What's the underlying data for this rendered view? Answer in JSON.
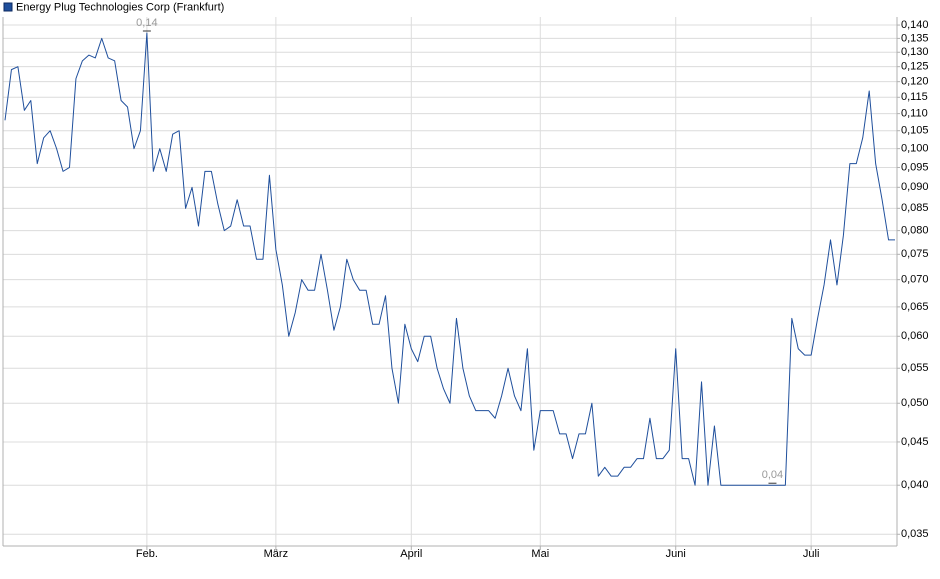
{
  "chart_data": {
    "type": "line",
    "log_y": true,
    "grid": true,
    "legend": "top-left",
    "categories": [
      null,
      null,
      null,
      null,
      null,
      null,
      null,
      null,
      null,
      null,
      null,
      null,
      null,
      null,
      null,
      null,
      null,
      null,
      null,
      null,
      null,
      null,
      "Feb.",
      null,
      null,
      null,
      null,
      null,
      null,
      null,
      null,
      null,
      null,
      null,
      null,
      null,
      null,
      null,
      null,
      null,
      null,
      null,
      "März",
      null,
      null,
      null,
      null,
      null,
      null,
      null,
      null,
      null,
      null,
      null,
      null,
      null,
      null,
      null,
      null,
      null,
      null,
      null,
      null,
      "April",
      null,
      null,
      null,
      null,
      null,
      null,
      null,
      null,
      null,
      null,
      null,
      null,
      null,
      null,
      null,
      null,
      null,
      null,
      null,
      "Mai",
      null,
      null,
      null,
      null,
      null,
      null,
      null,
      null,
      null,
      null,
      null,
      null,
      null,
      null,
      null,
      null,
      null,
      null,
      null,
      null,
      "Juni",
      null,
      null,
      null,
      null,
      null,
      null,
      null,
      null,
      null,
      null,
      null,
      null,
      null,
      null,
      null,
      null,
      null,
      null,
      null,
      null,
      "Juli",
      null,
      null,
      null,
      null,
      null,
      null,
      null,
      null,
      null,
      null,
      null,
      null,
      null
    ],
    "series": [
      {
        "name": "Energy Plug Technologies Corp (Frankfurt)",
        "color": "#1f4f9c",
        "values": [
          0.108,
          0.124,
          0.125,
          0.111,
          0.114,
          0.096,
          0.103,
          0.105,
          0.1,
          0.094,
          0.095,
          0.121,
          0.127,
          0.129,
          0.128,
          0.135,
          0.128,
          0.127,
          0.114,
          0.112,
          0.1,
          0.105,
          0.137,
          0.094,
          0.1,
          0.094,
          0.104,
          0.105,
          0.085,
          0.09,
          0.081,
          0.094,
          0.094,
          0.086,
          0.08,
          0.081,
          0.087,
          0.081,
          0.081,
          0.074,
          0.074,
          0.093,
          0.076,
          0.069,
          0.06,
          0.064,
          0.07,
          0.068,
          0.068,
          0.075,
          0.068,
          0.061,
          0.065,
          0.074,
          0.07,
          0.068,
          0.068,
          0.062,
          0.062,
          0.067,
          0.055,
          0.05,
          0.062,
          0.058,
          0.056,
          0.06,
          0.06,
          0.055,
          0.052,
          0.05,
          0.063,
          0.055,
          0.051,
          0.049,
          0.049,
          0.049,
          0.048,
          0.051,
          0.055,
          0.051,
          0.049,
          0.058,
          0.044,
          0.049,
          0.049,
          0.049,
          0.046,
          0.046,
          0.043,
          0.046,
          0.046,
          0.05,
          0.041,
          0.042,
          0.041,
          0.041,
          0.042,
          0.042,
          0.043,
          0.043,
          0.048,
          0.043,
          0.043,
          0.044,
          0.058,
          0.043,
          0.043,
          0.04,
          0.053,
          0.04,
          0.047,
          0.04,
          0.04,
          0.04,
          0.04,
          0.04,
          0.04,
          0.04,
          0.04,
          0.04,
          0.04,
          0.04,
          0.063,
          0.058,
          0.057,
          0.057,
          0.063,
          0.069,
          0.078,
          0.069,
          0.079,
          0.096,
          0.096,
          0.103,
          0.117,
          0.096,
          0.087,
          0.078,
          0.078
        ],
        "value_labels": [
          null,
          null,
          null,
          null,
          null,
          null,
          null,
          null,
          null,
          null,
          null,
          null,
          null,
          null,
          null,
          null,
          null,
          null,
          null,
          null,
          null,
          null,
          "0,14",
          null,
          null,
          null,
          null,
          null,
          null,
          null,
          null,
          null,
          null,
          null,
          null,
          null,
          null,
          null,
          null,
          null,
          null,
          null,
          null,
          null,
          null,
          null,
          null,
          null,
          null,
          null,
          null,
          null,
          null,
          null,
          null,
          null,
          null,
          null,
          null,
          null,
          null,
          null,
          null,
          null,
          null,
          null,
          null,
          null,
          null,
          null,
          null,
          null,
          null,
          null,
          null,
          null,
          null,
          null,
          null,
          null,
          null,
          null,
          null,
          null,
          null,
          null,
          null,
          null,
          null,
          null,
          null,
          null,
          null,
          null,
          null,
          null,
          null,
          null,
          null,
          null,
          null,
          null,
          null,
          null,
          null,
          null,
          null,
          null,
          null,
          null,
          null,
          null,
          null,
          null,
          null,
          null,
          null,
          null,
          null,
          "0,04",
          null,
          null,
          null,
          null,
          null,
          null,
          null,
          null,
          null,
          null,
          null,
          null,
          null,
          null,
          null,
          null,
          null,
          null,
          null
        ]
      }
    ],
    "ylim": [
      0.0339,
      0.1431
    ],
    "yticks": [
      {
        "value": 0.035,
        "label": "0,035"
      },
      {
        "value": 0.04,
        "label": "0,040"
      },
      {
        "value": 0.045,
        "label": "0,045"
      },
      {
        "value": 0.05,
        "label": "0,050"
      },
      {
        "value": 0.055,
        "label": "0,055"
      },
      {
        "value": 0.06,
        "label": "0,060"
      },
      {
        "value": 0.065,
        "label": "0,065"
      },
      {
        "value": 0.07,
        "label": "0,070"
      },
      {
        "value": 0.075,
        "label": "0,075"
      },
      {
        "value": 0.08,
        "label": "0,080"
      },
      {
        "value": 0.085,
        "label": "0,085"
      },
      {
        "value": 0.09,
        "label": "0,090"
      },
      {
        "value": 0.095,
        "label": "0,095"
      },
      {
        "value": 0.1,
        "label": "0,100"
      },
      {
        "value": 0.105,
        "label": "0,105"
      },
      {
        "value": 0.11,
        "label": "0,110"
      },
      {
        "value": 0.115,
        "label": "0,115"
      },
      {
        "value": 0.12,
        "label": "0,120"
      },
      {
        "value": 0.125,
        "label": "0,125"
      },
      {
        "value": 0.13,
        "label": "0,130"
      },
      {
        "value": 0.135,
        "label": "0,135"
      },
      {
        "value": 0.14,
        "label": "0,140"
      }
    ]
  }
}
